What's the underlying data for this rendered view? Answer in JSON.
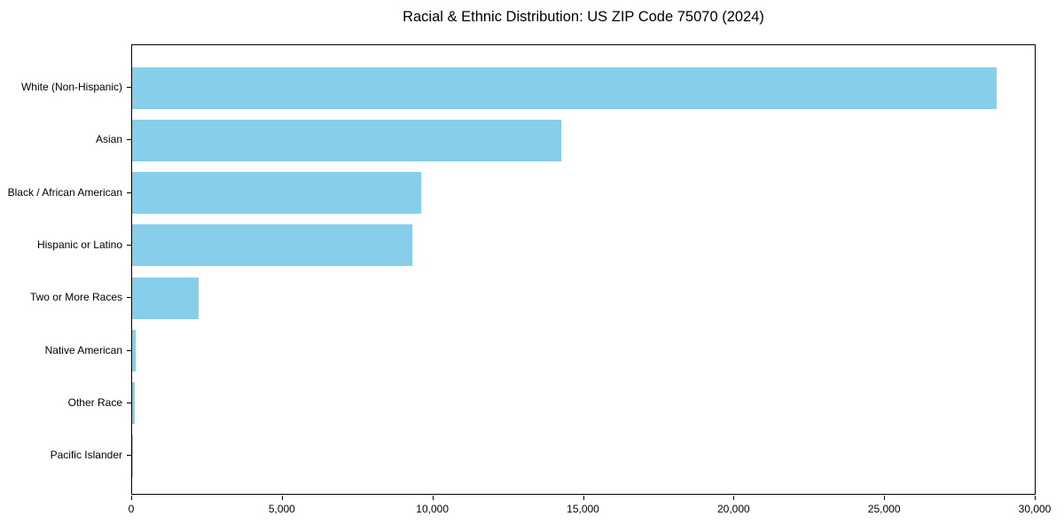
{
  "title": "Racial & Ethnic Distribution: US ZIP Code 75070 (2024)",
  "colors": {
    "bar": "#87CEEB",
    "axis": "#000000",
    "background": "#ffffff"
  },
  "chart_data": {
    "type": "bar",
    "orientation": "horizontal",
    "title": "Racial & Ethnic Distribution: US ZIP Code 75070 (2024)",
    "categories": [
      "White (Non-Hispanic)",
      "Asian",
      "Black / African American",
      "Hispanic or Latino",
      "Two or More Races",
      "Native American",
      "Other Race",
      "Pacific Islander"
    ],
    "values": [
      28700,
      14250,
      9600,
      9300,
      2200,
      120,
      90,
      25
    ],
    "xlabel": "",
    "ylabel": "",
    "xlim": [
      0,
      30000
    ],
    "xticks": [
      0,
      5000,
      10000,
      15000,
      20000,
      25000,
      30000
    ],
    "xtick_labels": [
      "0",
      "5,000",
      "10,000",
      "15,000",
      "20,000",
      "25,000",
      "30,000"
    ],
    "grid": false,
    "legend": null,
    "bar_color": "#87CEEB"
  }
}
